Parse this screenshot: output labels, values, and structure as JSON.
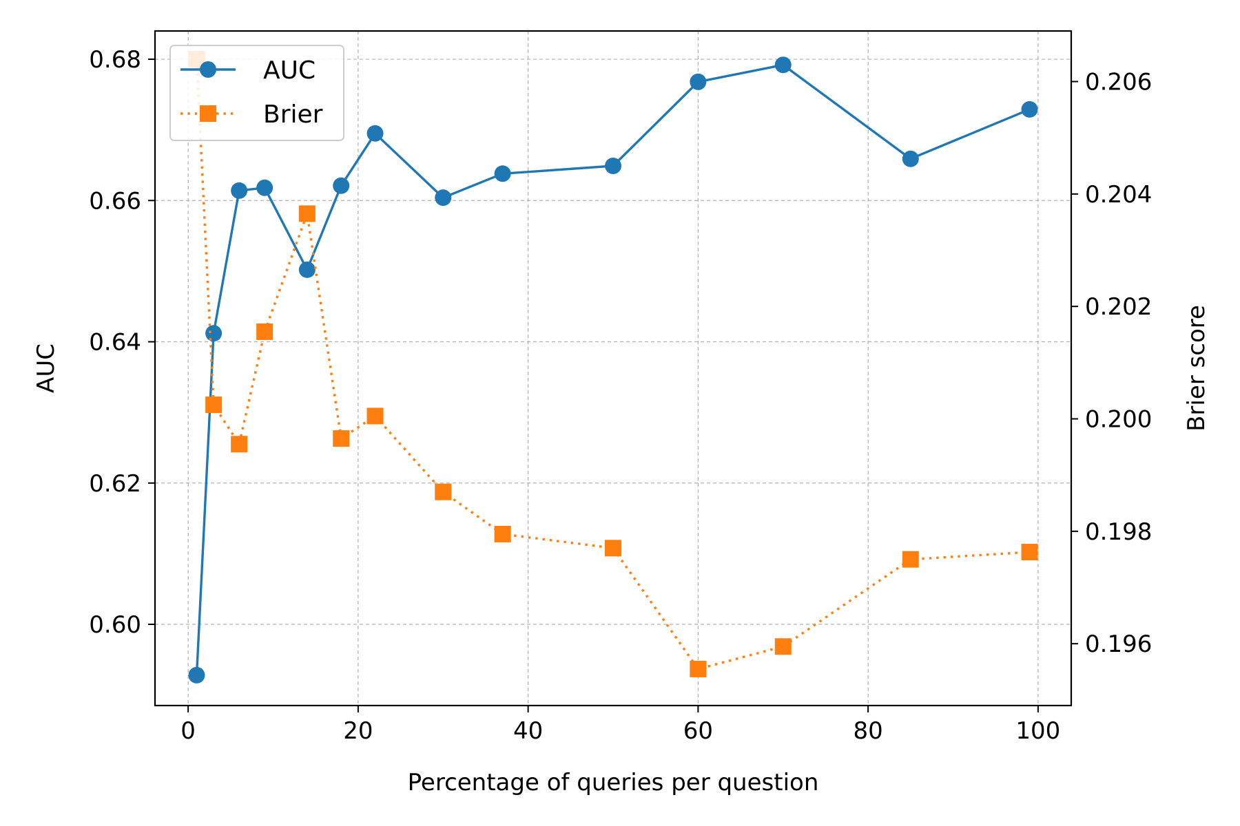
{
  "chart_data": {
    "type": "line",
    "title": "",
    "xlabel": "Percentage of queries per question",
    "ylabel_left": "AUC",
    "ylabel_right": "Brier score",
    "xlim": [
      -3.9,
      103.9
    ],
    "ylim_left": [
      0.5885,
      0.684
    ],
    "ylim_right": [
      0.1949,
      0.2069
    ],
    "xticks": [
      0,
      20,
      40,
      60,
      80,
      100
    ],
    "yticks_left": [
      0.6,
      0.62,
      0.64,
      0.66,
      0.68
    ],
    "yticks_left_labels": [
      "0.60",
      "0.62",
      "0.64",
      "0.66",
      "0.68"
    ],
    "yticks_right": [
      0.196,
      0.198,
      0.2,
      0.202,
      0.204,
      0.206
    ],
    "yticks_right_labels": [
      "0.196",
      "0.198",
      "0.200",
      "0.202",
      "0.204",
      "0.206"
    ],
    "grid": true,
    "legend_position": "top-left",
    "x": [
      1,
      3,
      6,
      9,
      14,
      18,
      22,
      30,
      37,
      50,
      60,
      70,
      85,
      99
    ],
    "series": [
      {
        "name": "AUC",
        "axis": "left",
        "color": "#1f77b4",
        "line_style": "solid",
        "marker": "circle",
        "values": [
          0.5928,
          0.6412,
          0.6614,
          0.6618,
          0.6502,
          0.6621,
          0.6695,
          0.6604,
          0.6638,
          0.6649,
          0.6768,
          0.6792,
          0.6659,
          0.6729
        ]
      },
      {
        "name": "Brier",
        "axis": "right",
        "color": "#ff7f0e",
        "line_style": "dotted",
        "marker": "square",
        "values": [
          0.2064,
          0.20025,
          0.19955,
          0.20155,
          0.20365,
          0.19965,
          0.20005,
          0.1987,
          0.19795,
          0.1977,
          0.19555,
          0.19595,
          0.1975,
          0.19763
        ]
      }
    ]
  }
}
